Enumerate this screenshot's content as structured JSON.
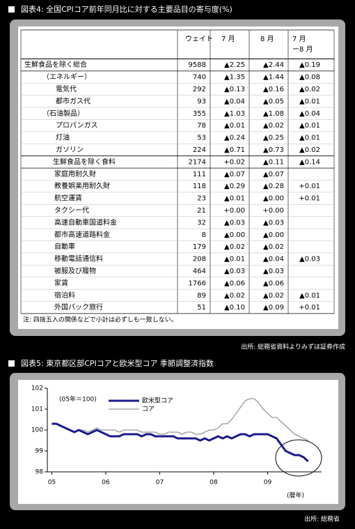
{
  "table_title": "図表4: 全国CPIコア前年同月比に対する主要品目の寄与度(%)",
  "table": {
    "header": [
      [
        "ウェイト"
      ],
      [
        "7 月"
      ],
      [
        "8 月"
      ],
      [
        "7 月",
        "ー8 月"
      ]
    ],
    "rows": [
      [
        "生鮮食品を除く総合",
        9588,
        "▲2.25",
        "▲2.44",
        "▲0.19"
      ],
      [
        "（エネルギー）",
        740,
        "▲1.35",
        "▲1.44",
        "▲0.08"
      ],
      [
        "電気代",
        292,
        "▲0.13",
        "▲0.16",
        "▲0.02"
      ],
      [
        "都市ガス代",
        93,
        "▲0.04",
        "▲0.05",
        "▲0.01"
      ],
      [
        "（石油製品）",
        355,
        "▲1.03",
        "▲1.08",
        "▲0.04"
      ],
      [
        "プロパンガス",
        78,
        "▲0.01",
        "▲0.02",
        "▲0.01"
      ],
      [
        "灯油",
        53,
        "▲0.24",
        "▲0.25",
        "▲0.01"
      ],
      [
        "ガソリン",
        224,
        "▲0.71",
        "▲0.73",
        "▲0.02"
      ],
      [
        "生鮮食品を除く食料",
        2174,
        "+0.02",
        "▲0.11",
        "▲0.14"
      ],
      [
        "家庭用耐久財",
        111,
        "▲0.07",
        "▲0.07",
        null
      ],
      [
        "教養娯楽用耐久財",
        118,
        "▲0.29",
        "▲0.28",
        "+0.01"
      ],
      [
        "航空運賃",
        23,
        "▲0.01",
        "▲0.00",
        "+0.01"
      ],
      [
        "タクシー代",
        21,
        "+0.00",
        "+0.00",
        null
      ],
      [
        "高速自動車国道料金",
        32,
        "▲0.03",
        "▲0.03",
        null
      ],
      [
        "都市高速道路料金",
        8,
        "▲0.00",
        "▲0.00",
        null
      ],
      [
        "自動車",
        179,
        "▲0.02",
        "▲0.02",
        null
      ],
      [
        "移動電話通信料",
        208,
        "▲0.01",
        "▲0.04",
        "▲0.03"
      ],
      [
        "被服及び履物",
        464,
        "▲0.03",
        "▲0.03",
        null
      ],
      [
        "家賃",
        1766,
        "▲0.06",
        "▲0.06",
        null
      ],
      [
        "宿泊料",
        89,
        "▲0.02",
        "▲0.02",
        "▲0.01"
      ],
      [
        "外国パック旅行",
        51,
        "▲0.10",
        "▲0.09",
        "+0.01"
      ]
    ],
    "note": "注: 四捨五入の関係などで小計は必ずしも一致しない。"
  },
  "table_source": "出所: 総務省資料よりみずほ証券作成",
  "chart_data": {
    "type": "line",
    "title": "図表5: 東京都区部CPIコアと欧米型コア 季節調整済指数",
    "annotations": [
      "(05年＝100)",
      "(暦年)"
    ],
    "source": "出所: 総務省",
    "x": [
      0,
      1,
      2,
      3,
      4,
      5,
      6,
      7,
      8,
      9,
      10,
      11,
      12,
      13,
      14,
      15,
      16,
      17,
      18,
      19,
      20,
      21,
      22,
      23,
      24,
      25,
      26,
      27,
      28,
      29,
      30,
      31,
      32,
      33,
      34,
      35,
      36,
      37,
      38,
      39,
      40,
      41,
      42,
      43,
      44,
      45,
      46,
      47,
      48,
      49,
      50,
      51,
      52,
      53,
      54,
      55,
      56,
      57
    ],
    "xlim": [
      -1,
      60
    ],
    "xticks": [
      {
        "value": 0,
        "label": "05"
      },
      {
        "value": 12,
        "label": "06"
      },
      {
        "value": 24,
        "label": "07"
      },
      {
        "value": 36,
        "label": "08"
      },
      {
        "value": 48,
        "label": "09"
      }
    ],
    "ylim": [
      98,
      102
    ],
    "yticks": [
      98,
      99,
      100,
      101,
      102
    ],
    "series": [
      {
        "name": "欧米型コア",
        "color": "#1a1a8c",
        "values": [
          100.3,
          100.3,
          100.2,
          100.1,
          100.0,
          99.9,
          100.0,
          99.9,
          99.8,
          99.9,
          100.0,
          99.9,
          99.8,
          99.7,
          99.7,
          99.7,
          99.8,
          99.8,
          99.8,
          99.8,
          99.7,
          99.8,
          99.8,
          99.7,
          99.7,
          99.7,
          99.7,
          99.7,
          99.6,
          99.6,
          99.6,
          99.6,
          99.6,
          99.5,
          99.6,
          99.5,
          99.6,
          99.7,
          99.6,
          99.7,
          99.6,
          99.7,
          99.8,
          99.8,
          99.7,
          99.8,
          99.8,
          99.8,
          99.8,
          99.7,
          99.6,
          99.3,
          99.0,
          98.9,
          98.8,
          98.8,
          98.7,
          98.5
        ]
      },
      {
        "name": "コア",
        "color": "#999999",
        "values": [
          100.3,
          100.3,
          100.2,
          100.1,
          100.0,
          99.9,
          100.0,
          100.0,
          99.9,
          100.0,
          100.1,
          100.0,
          100.0,
          100.0,
          100.0,
          99.9,
          100.0,
          100.0,
          100.0,
          100.0,
          99.9,
          99.9,
          99.9,
          99.9,
          99.8,
          99.8,
          99.9,
          99.9,
          99.9,
          99.8,
          99.9,
          99.9,
          99.8,
          99.8,
          99.9,
          100.0,
          100.0,
          100.1,
          100.3,
          100.3,
          100.5,
          100.8,
          101.1,
          101.4,
          101.5,
          101.5,
          101.3,
          101.0,
          100.8,
          100.6,
          100.6,
          100.4,
          100.2,
          100.0,
          99.8,
          99.7,
          99.6,
          99.5
        ]
      }
    ]
  }
}
